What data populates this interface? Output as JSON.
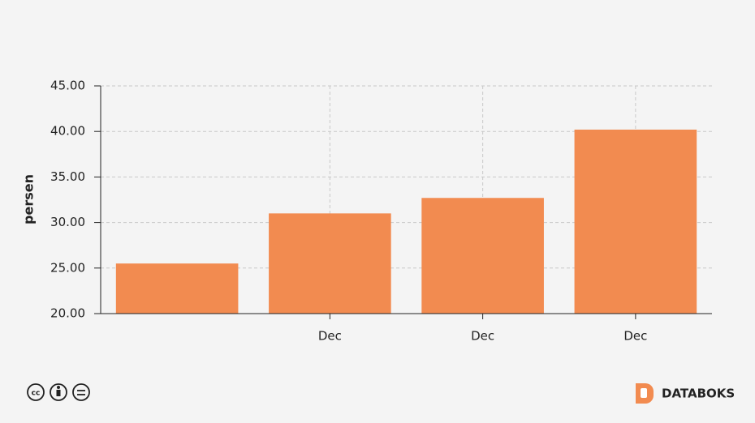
{
  "chart_data": {
    "type": "bar",
    "y_label": "persen",
    "categories": [
      null,
      "Dec",
      "Dec",
      "Dec"
    ],
    "values": [
      25.5,
      31.0,
      32.7,
      40.2
    ],
    "color": "#f28b50",
    "ylim": [
      20,
      45
    ],
    "yticks": [
      {
        "value": 20,
        "label": "20.00"
      },
      {
        "value": 25,
        "label": "25.00"
      },
      {
        "value": 30,
        "label": "30.00"
      },
      {
        "value": 35,
        "label": "35.00"
      },
      {
        "value": 40,
        "label": "40.00"
      },
      {
        "value": 45,
        "label": "45.00"
      }
    ],
    "grid": true
  },
  "footer": {
    "brand": "DATABOKS"
  }
}
